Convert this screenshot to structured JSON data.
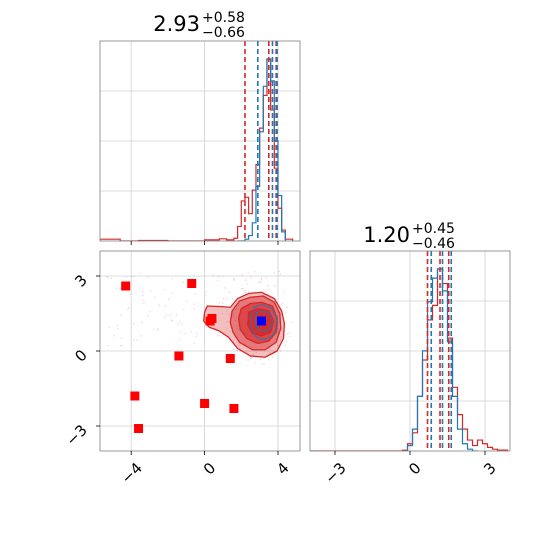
{
  "colors": {
    "blue": "#1f77b4",
    "red": "#d62728",
    "marker_red": "#ff0000",
    "marker_blue": "#0000ff"
  },
  "chart_data": {
    "type": "corner",
    "grid": true,
    "panels": {
      "hist_x": {
        "title": {
          "value": "2.93",
          "plus": "+0.58",
          "minus": "−0.66"
        },
        "xlim": [
          -5.7,
          5.2
        ],
        "xticks": [
          -4,
          0,
          4
        ],
        "quantiles_red": [
          2.2,
          3.5,
          3.9
        ],
        "quantiles_blue": [
          2.9,
          3.7,
          3.95
        ],
        "bin_edges": [
          1.8,
          2.0,
          2.2,
          2.4,
          2.6,
          2.8,
          3.0,
          3.2,
          3.4,
          3.6,
          3.8,
          4.0,
          4.2,
          4.4
        ],
        "blue_counts": [
          0,
          0,
          1,
          3,
          10,
          30,
          60,
          85,
          100,
          88,
          55,
          25,
          5
        ],
        "red_bins": [
          [
            -5.7,
            -4.6,
            1
          ],
          [
            -4.6,
            -3.6,
            0
          ],
          [
            -3.6,
            -2.0,
            0.3
          ],
          [
            -2.0,
            0.0,
            0
          ],
          [
            0.0,
            0.8,
            0.6
          ],
          [
            0.8,
            1.2,
            1.2
          ],
          [
            1.2,
            1.6,
            0.6
          ],
          [
            1.6,
            1.8,
            1.5
          ],
          [
            1.8,
            2.0,
            8
          ],
          [
            2.0,
            2.2,
            22
          ],
          [
            2.2,
            2.4,
            24
          ],
          [
            2.4,
            2.6,
            15
          ],
          [
            2.6,
            2.8,
            28
          ],
          [
            2.8,
            3.0,
            42
          ],
          [
            3.0,
            3.2,
            62
          ],
          [
            3.2,
            3.4,
            80
          ],
          [
            3.4,
            3.6,
            100
          ],
          [
            3.6,
            3.8,
            72
          ],
          [
            3.8,
            4.0,
            40
          ],
          [
            4.0,
            4.2,
            18
          ],
          [
            4.2,
            4.4,
            6
          ],
          [
            4.4,
            4.8,
            1
          ]
        ]
      },
      "scatter": {
        "xlim": [
          -5.7,
          5.2
        ],
        "ylim": [
          -4.0,
          4.0
        ],
        "xticks": [
          -4,
          0,
          4
        ],
        "yticks": [
          -3,
          0,
          3
        ],
        "red_markers": [
          [
            -4.3,
            2.6
          ],
          [
            -0.7,
            2.7
          ],
          [
            0.3,
            1.2
          ],
          [
            0.4,
            1.3
          ],
          [
            -1.4,
            -0.2
          ],
          [
            1.4,
            -0.3
          ],
          [
            -3.8,
            -1.8
          ],
          [
            0.0,
            -2.1
          ],
          [
            1.6,
            -2.3
          ],
          [
            -3.6,
            -3.1
          ]
        ],
        "blue_marker": [
          3.1,
          1.2
        ],
        "contours_red": [
          {
            "level": "outer",
            "points": [
              [
                0.0,
                1.55
              ],
              [
                0.15,
                1.8
              ],
              [
                0.8,
                1.78
              ],
              [
                1.4,
                1.75
              ],
              [
                1.8,
                2.1
              ],
              [
                2.4,
                2.3
              ],
              [
                3.1,
                2.35
              ],
              [
                3.8,
                2.1
              ],
              [
                4.2,
                1.6
              ],
              [
                4.35,
                1.1
              ],
              [
                4.3,
                0.5
              ],
              [
                3.95,
                0.0
              ],
              [
                3.3,
                -0.25
              ],
              [
                2.5,
                -0.2
              ],
              [
                1.8,
                0.1
              ],
              [
                1.3,
                0.55
              ],
              [
                0.8,
                0.8
              ],
              [
                0.25,
                0.95
              ],
              [
                -0.05,
                1.2
              ]
            ],
            "fill": 0.3
          },
          {
            "level": "second",
            "points": [
              [
                1.5,
                1.6
              ],
              [
                1.9,
                2.0
              ],
              [
                2.5,
                2.15
              ],
              [
                3.2,
                2.2
              ],
              [
                3.8,
                1.95
              ],
              [
                4.1,
                1.5
              ],
              [
                4.15,
                0.9
              ],
              [
                3.9,
                0.35
              ],
              [
                3.3,
                0.05
              ],
              [
                2.6,
                0.05
              ],
              [
                1.9,
                0.35
              ],
              [
                1.55,
                0.75
              ],
              [
                1.4,
                1.15
              ]
            ],
            "fill": 0.45
          },
          {
            "level": "third",
            "points": [
              [
                2.0,
                1.7
              ],
              [
                2.5,
                1.9
              ],
              [
                3.1,
                1.95
              ],
              [
                3.7,
                1.8
              ],
              [
                3.95,
                1.3
              ],
              [
                3.9,
                0.75
              ],
              [
                3.5,
                0.4
              ],
              [
                2.9,
                0.3
              ],
              [
                2.3,
                0.5
              ],
              [
                1.95,
                0.85
              ],
              [
                1.85,
                1.3
              ]
            ],
            "fill": 0.6
          },
          {
            "level": "inner",
            "points": [
              [
                2.4,
                1.55
              ],
              [
                2.9,
                1.7
              ],
              [
                3.5,
                1.6
              ],
              [
                3.75,
                1.2
              ],
              [
                3.6,
                0.75
              ],
              [
                3.1,
                0.6
              ],
              [
                2.6,
                0.7
              ],
              [
                2.35,
                1.05
              ]
            ],
            "fill": 0.85
          }
        ],
        "contours_blue": [
          {
            "level": "outer",
            "points": [
              [
                2.7,
                1.75
              ],
              [
                3.1,
                1.85
              ],
              [
                3.6,
                1.75
              ],
              [
                3.95,
                1.35
              ],
              [
                3.95,
                0.9
              ],
              [
                3.7,
                0.6
              ],
              [
                3.2,
                0.45
              ],
              [
                2.8,
                0.55
              ],
              [
                2.55,
                0.9
              ],
              [
                2.5,
                1.35
              ]
            ]
          },
          {
            "level": "inner",
            "points": [
              [
                2.85,
                1.55
              ],
              [
                3.2,
                1.6
              ],
              [
                3.55,
                1.5
              ],
              [
                3.7,
                1.2
              ],
              [
                3.6,
                0.9
              ],
              [
                3.25,
                0.78
              ],
              [
                2.9,
                0.85
              ],
              [
                2.75,
                1.2
              ]
            ]
          }
        ]
      },
      "hist_y": {
        "title": {
          "value": "1.20",
          "plus": "+0.45",
          "minus": "−0.46"
        },
        "xlim": [
          -4.0,
          4.0
        ],
        "xticks": [
          -3,
          0,
          3
        ],
        "quantiles_red": [
          0.7,
          1.2,
          1.55
        ],
        "quantiles_blue": [
          0.85,
          1.3,
          1.65
        ],
        "bin_edges": [
          -0.1,
          0.1,
          0.3,
          0.5,
          0.7,
          0.9,
          1.1,
          1.3,
          1.5,
          1.7,
          1.9,
          2.1,
          2.3,
          2.5,
          2.7
        ],
        "blue_counts": [
          3,
          12,
          30,
          55,
          82,
          95,
          100,
          88,
          60,
          30,
          12,
          4,
          1,
          0
        ],
        "red_bins": [
          [
            -4.0,
            -0.3,
            0
          ],
          [
            -0.3,
            -0.1,
            0.4
          ],
          [
            -0.1,
            0.1,
            4
          ],
          [
            0.1,
            0.3,
            10
          ],
          [
            0.3,
            0.5,
            30
          ],
          [
            0.5,
            0.7,
            50
          ],
          [
            0.7,
            0.9,
            72
          ],
          [
            0.9,
            1.1,
            80
          ],
          [
            1.1,
            1.3,
            100
          ],
          [
            1.3,
            1.5,
            92
          ],
          [
            1.5,
            1.7,
            62
          ],
          [
            1.7,
            1.9,
            35
          ],
          [
            1.9,
            2.1,
            20
          ],
          [
            2.1,
            2.3,
            12
          ],
          [
            2.3,
            2.5,
            6
          ],
          [
            2.5,
            2.7,
            3
          ],
          [
            2.7,
            2.9,
            6
          ],
          [
            2.9,
            3.1,
            4
          ],
          [
            3.1,
            3.3,
            2
          ],
          [
            3.3,
            3.5,
            1
          ],
          [
            3.5,
            3.9,
            0.5
          ]
        ]
      }
    }
  }
}
